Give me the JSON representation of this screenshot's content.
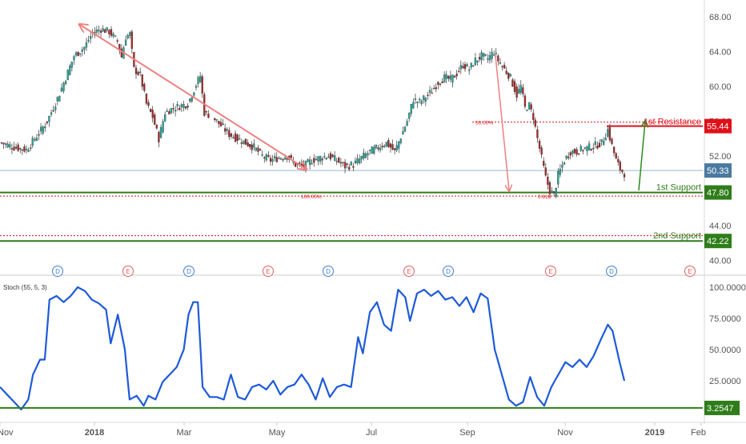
{
  "colors": {
    "up": "#26a69a",
    "down": "#a52a2a",
    "candle_outline": "#333333",
    "resistance": "#e0101a",
    "support": "#2e7d1a",
    "current": "#4a7aa0",
    "stoch_line": "#1e5ad8",
    "fib": "#e07070",
    "arrow_down": "#f08080",
    "arrow_up": "#2e8b1a",
    "grid_text": "#555555",
    "dividend": "#3f7fd0",
    "earnings": "#e06060"
  },
  "chart_data": [
    {
      "type": "candlestick",
      "title": "",
      "x_tick_labels": [
        "Nov",
        "2018",
        "Mar",
        "May",
        "Jul",
        "Sep",
        "Nov",
        "2019",
        "Feb"
      ],
      "y_tick_labels": [
        "68.00",
        "64.00",
        "60.00",
        "56.00",
        "52.00",
        "48.00",
        "44.00",
        "40.00"
      ],
      "y_ticks": [
        68,
        64,
        60,
        56,
        52,
        48,
        44,
        40
      ],
      "ylim": [
        39.2,
        69.4
      ],
      "series_anchors": [
        [
          0,
          53.5
        ],
        [
          6,
          53.0
        ],
        [
          12,
          52.7
        ],
        [
          18,
          54.6
        ],
        [
          22,
          56.0
        ],
        [
          27,
          58.6
        ],
        [
          31,
          61.0
        ],
        [
          35,
          63.5
        ],
        [
          40,
          64.5
        ],
        [
          44,
          66.2
        ],
        [
          48,
          66.6
        ],
        [
          52,
          66.3
        ],
        [
          56,
          65.2
        ],
        [
          58,
          63.4
        ],
        [
          60,
          65.7
        ],
        [
          62,
          66.0
        ],
        [
          64,
          62.0
        ],
        [
          67,
          61.3
        ],
        [
          70,
          58.0
        ],
        [
          73,
          56.5
        ],
        [
          76,
          54.0
        ],
        [
          79,
          57.0
        ],
        [
          83,
          57.5
        ],
        [
          87,
          57.8
        ],
        [
          90,
          58.0
        ],
        [
          94,
          60.2
        ],
        [
          96,
          61.2
        ],
        [
          98,
          57.0
        ],
        [
          102,
          56.5
        ],
        [
          106,
          55.5
        ],
        [
          110,
          54.5
        ],
        [
          114,
          54.0
        ],
        [
          118,
          53.5
        ],
        [
          122,
          53.0
        ],
        [
          126,
          52.0
        ],
        [
          130,
          51.5
        ],
        [
          134,
          51.8
        ],
        [
          138,
          52.0
        ],
        [
          142,
          51.0
        ],
        [
          146,
          50.8
        ],
        [
          150,
          51.5
        ],
        [
          154,
          51.8
        ],
        [
          158,
          52.0
        ],
        [
          162,
          51.5
        ],
        [
          166,
          50.8
        ],
        [
          170,
          51.0
        ],
        [
          174,
          51.8
        ],
        [
          178,
          52.5
        ],
        [
          182,
          53.0
        ],
        [
          186,
          53.5
        ],
        [
          190,
          52.5
        ],
        [
          193,
          54.2
        ],
        [
          196,
          56.0
        ],
        [
          199,
          58.5
        ],
        [
          202,
          58.2
        ],
        [
          205,
          58.8
        ],
        [
          208,
          59.5
        ],
        [
          211,
          60.5
        ],
        [
          214,
          61.0
        ],
        [
          217,
          60.8
        ],
        [
          220,
          61.5
        ],
        [
          223,
          62.5
        ],
        [
          226,
          62.0
        ],
        [
          229,
          63.0
        ],
        [
          232,
          63.5
        ],
        [
          235,
          63.2
        ],
        [
          238,
          64.0
        ],
        [
          240,
          63.0
        ],
        [
          243,
          62.0
        ],
        [
          246,
          61.0
        ],
        [
          249,
          59.0
        ],
        [
          251,
          60.0
        ],
        [
          253,
          57.5
        ],
        [
          255,
          57.8
        ],
        [
          257,
          56.5
        ],
        [
          259,
          54.0
        ],
        [
          263,
          49.5
        ],
        [
          265,
          48.0
        ],
        [
          267,
          47.5
        ],
        [
          269,
          49.8
        ],
        [
          272,
          51.5
        ],
        [
          275,
          52.5
        ],
        [
          278,
          52.5
        ],
        [
          281,
          52.8
        ],
        [
          284,
          53.0
        ],
        [
          287,
          53.2
        ],
        [
          290,
          53.5
        ],
        [
          293,
          55.0
        ],
        [
          295,
          53.2
        ],
        [
          297,
          51.5
        ],
        [
          299,
          50.5
        ],
        [
          301,
          50.0
        ]
      ],
      "n_candles": 302,
      "annotations": {
        "resistance_1": {
          "value": 55.44,
          "label": "1st Resistance",
          "price_label": "55.44"
        },
        "support_1": {
          "value": 47.8,
          "label": "1st Support",
          "price_label": "47.80"
        },
        "support_2": {
          "value": 42.22,
          "label": "2nd Support",
          "price_label": "42.22"
        },
        "current": {
          "value": 50.33,
          "price_label": "50.33"
        },
        "fib_50": {
          "value": 55.9,
          "label": "50.00%"
        },
        "fib_100": {
          "value": 47.38,
          "label": "100.00%"
        },
        "fib_other": {
          "value": 47.38,
          "label": "0.618"
        },
        "dotted_support_2": {
          "value": 42.82
        }
      },
      "events": [
        {
          "type": "D",
          "label": "D"
        },
        {
          "type": "E",
          "label": "E"
        },
        {
          "type": "D",
          "label": "D"
        },
        {
          "type": "E",
          "label": "E"
        },
        {
          "type": "D",
          "label": "D"
        },
        {
          "type": "E",
          "label": "E"
        },
        {
          "type": "D",
          "label": "D"
        },
        {
          "type": "E",
          "label": "E"
        },
        {
          "type": "D",
          "label": "D"
        },
        {
          "type": "E",
          "label": "E"
        }
      ]
    },
    {
      "type": "line",
      "title": "Stoch (55, 5, 3)",
      "y_tick_labels": [
        "100.0000",
        "75.0000",
        "50.0000",
        "25.0000"
      ],
      "y_ticks": [
        100,
        75,
        50,
        25
      ],
      "ylim": [
        0,
        100
      ],
      "current_label": "3.2547",
      "current_value": 3.2547,
      "series_anchors": [
        [
          0,
          20
        ],
        [
          5,
          10
        ],
        [
          9,
          2
        ],
        [
          12,
          10
        ],
        [
          14,
          30
        ],
        [
          17,
          42
        ],
        [
          19,
          42
        ],
        [
          21,
          90
        ],
        [
          24,
          93
        ],
        [
          27,
          88
        ],
        [
          30,
          93
        ],
        [
          33,
          100
        ],
        [
          36,
          97
        ],
        [
          39,
          90
        ],
        [
          42,
          87
        ],
        [
          45,
          82
        ],
        [
          47,
          55
        ],
        [
          50,
          78
        ],
        [
          53,
          50
        ],
        [
          55,
          10
        ],
        [
          58,
          13
        ],
        [
          61,
          5
        ],
        [
          63,
          13
        ],
        [
          66,
          10
        ],
        [
          69,
          24
        ],
        [
          72,
          30
        ],
        [
          75,
          36
        ],
        [
          78,
          50
        ],
        [
          80,
          78
        ],
        [
          82,
          88
        ],
        [
          84,
          88
        ],
        [
          86,
          20
        ],
        [
          89,
          12
        ],
        [
          92,
          12
        ],
        [
          95,
          10
        ],
        [
          98,
          30
        ],
        [
          101,
          12
        ],
        [
          104,
          10
        ],
        [
          107,
          20
        ],
        [
          110,
          22
        ],
        [
          113,
          18
        ],
        [
          116,
          25
        ],
        [
          119,
          14
        ],
        [
          122,
          20
        ],
        [
          125,
          22
        ],
        [
          128,
          30
        ],
        [
          131,
          22
        ],
        [
          134,
          10
        ],
        [
          137,
          27
        ],
        [
          140,
          12
        ],
        [
          143,
          20
        ],
        [
          146,
          22
        ],
        [
          149,
          20
        ],
        [
          152,
          60
        ],
        [
          154,
          47
        ],
        [
          157,
          80
        ],
        [
          160,
          88
        ],
        [
          163,
          70
        ],
        [
          166,
          65
        ],
        [
          169,
          98
        ],
        [
          172,
          92
        ],
        [
          174,
          73
        ],
        [
          177,
          95
        ],
        [
          180,
          98
        ],
        [
          183,
          93
        ],
        [
          186,
          97
        ],
        [
          189,
          90
        ],
        [
          192,
          92
        ],
        [
          195,
          85
        ],
        [
          198,
          92
        ],
        [
          201,
          80
        ],
        [
          204,
          95
        ],
        [
          207,
          91
        ],
        [
          210,
          50
        ],
        [
          213,
          30
        ],
        [
          216,
          10
        ],
        [
          219,
          5
        ],
        [
          222,
          8
        ],
        [
          225,
          28
        ],
        [
          228,
          12
        ],
        [
          231,
          5
        ],
        [
          234,
          20
        ],
        [
          237,
          30
        ],
        [
          240,
          40
        ],
        [
          243,
          36
        ],
        [
          246,
          42
        ],
        [
          249,
          36
        ],
        [
          252,
          45
        ],
        [
          255,
          58
        ],
        [
          258,
          70
        ],
        [
          260,
          65
        ],
        [
          263,
          40
        ],
        [
          265,
          25
        ]
      ],
      "n_points": 266
    }
  ],
  "x_axis": {
    "labels": [
      "Nov",
      "2018",
      "Mar",
      "May",
      "Jul",
      "Sep",
      "Nov",
      "2019",
      "Feb"
    ]
  }
}
